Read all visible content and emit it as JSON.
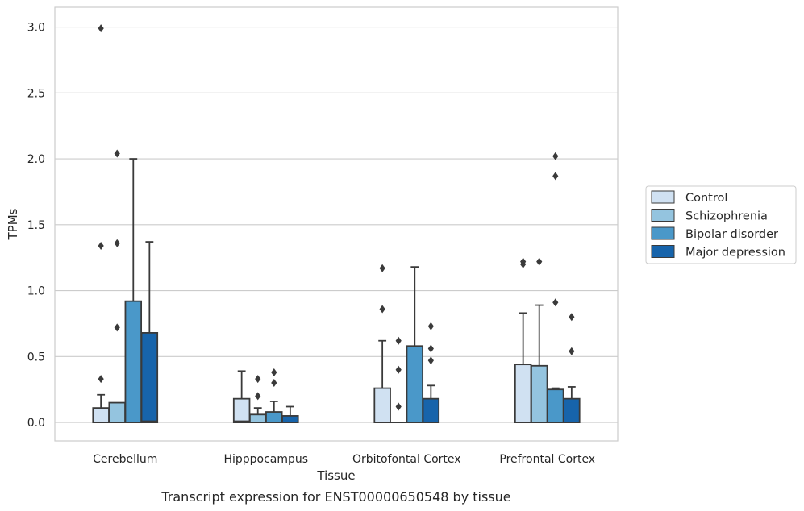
{
  "caption": "Transcript expression for ENST00000650548 by tissue",
  "chart_data": {
    "type": "box",
    "xlabel": "Tissue",
    "ylabel": "TPMs",
    "ylim": [
      -0.14,
      3.15
    ],
    "yticks": [
      "0.0",
      "0.5",
      "1.0",
      "1.5",
      "2.0",
      "2.5",
      "3.0"
    ],
    "grid": "horizontal",
    "legend_position": "right",
    "categories": [
      "Cerebellum",
      "Hipppocampus",
      "Orbitofontal Cortex",
      "Prefrontal Cortex"
    ],
    "series": [
      {
        "name": "Control",
        "color": "#d0e1f2",
        "boxes": [
          {
            "q1": 0.0,
            "median": 0.0,
            "q3": 0.11,
            "whisker_low": 0.0,
            "whisker_high": 0.21,
            "outliers": [
              0.33,
              1.34,
              2.99
            ]
          },
          {
            "q1": 0.0,
            "median": 0.01,
            "q3": 0.18,
            "whisker_low": 0.0,
            "whisker_high": 0.39,
            "outliers": []
          },
          {
            "q1": 0.0,
            "median": 0.0,
            "q3": 0.26,
            "whisker_low": 0.0,
            "whisker_high": 0.62,
            "outliers": [
              0.86,
              1.17
            ]
          },
          {
            "q1": 0.0,
            "median": 0.0,
            "q3": 0.44,
            "whisker_low": 0.0,
            "whisker_high": 0.83,
            "outliers": [
              1.2,
              1.22
            ]
          }
        ]
      },
      {
        "name": "Schizophrenia",
        "color": "#94c4df",
        "boxes": [
          {
            "q1": 0.0,
            "median": 0.0,
            "q3": 0.15,
            "whisker_low": 0.0,
            "whisker_high": 0.15,
            "outliers": [
              0.72,
              1.36,
              2.04
            ]
          },
          {
            "q1": 0.0,
            "median": 0.0,
            "q3": 0.06,
            "whisker_low": 0.0,
            "whisker_high": 0.11,
            "outliers": [
              0.2,
              0.33
            ]
          },
          {
            "q1": 0.0,
            "median": 0.0,
            "q3": 0.0,
            "whisker_low": 0.0,
            "whisker_high": 0.0,
            "outliers": [
              0.12,
              0.4,
              0.62
            ]
          },
          {
            "q1": 0.0,
            "median": 0.0,
            "q3": 0.43,
            "whisker_low": 0.0,
            "whisker_high": 0.89,
            "outliers": [
              1.22
            ]
          }
        ]
      },
      {
        "name": "Bipolar disorder",
        "color": "#4a98c9",
        "boxes": [
          {
            "q1": 0.0,
            "median": 0.0,
            "q3": 0.92,
            "whisker_low": 0.0,
            "whisker_high": 2.0,
            "outliers": []
          },
          {
            "q1": 0.0,
            "median": 0.0,
            "q3": 0.08,
            "whisker_low": 0.0,
            "whisker_high": 0.16,
            "outliers": [
              0.3,
              0.38
            ]
          },
          {
            "q1": 0.0,
            "median": 0.0,
            "q3": 0.58,
            "whisker_low": 0.0,
            "whisker_high": 1.18,
            "outliers": []
          },
          {
            "q1": 0.0,
            "median": 0.0,
            "q3": 0.25,
            "whisker_low": 0.0,
            "whisker_high": 0.26,
            "outliers": [
              0.91,
              1.87,
              2.02
            ]
          }
        ]
      },
      {
        "name": "Major depression",
        "color": "#1764ab",
        "boxes": [
          {
            "q1": 0.0,
            "median": 0.01,
            "q3": 0.68,
            "whisker_low": 0.0,
            "whisker_high": 1.37,
            "outliers": []
          },
          {
            "q1": 0.0,
            "median": 0.0,
            "q3": 0.05,
            "whisker_low": 0.0,
            "whisker_high": 0.12,
            "outliers": []
          },
          {
            "q1": 0.0,
            "median": 0.0,
            "q3": 0.18,
            "whisker_low": 0.0,
            "whisker_high": 0.28,
            "outliers": [
              0.47,
              0.56,
              0.73
            ]
          },
          {
            "q1": 0.0,
            "median": 0.0,
            "q3": 0.18,
            "whisker_low": 0.0,
            "whisker_high": 0.27,
            "outliers": [
              0.54,
              0.8
            ]
          }
        ]
      }
    ]
  }
}
